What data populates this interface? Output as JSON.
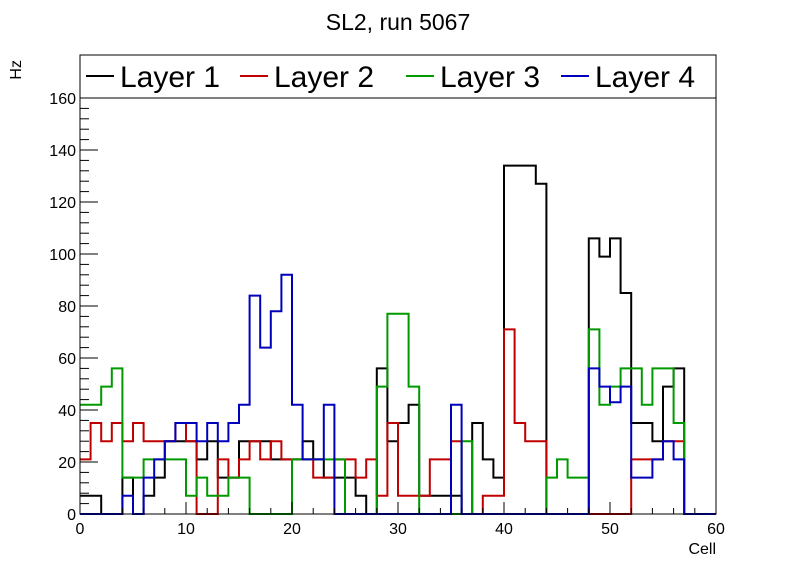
{
  "chart_data": {
    "type": "line",
    "title": "SL2, run 5067",
    "xlabel": "Cell",
    "ylabel": "Hz",
    "xlim": [
      0,
      60
    ],
    "ylim": [
      0,
      160
    ],
    "x_ticks": [
      0,
      10,
      20,
      30,
      40,
      50,
      60
    ],
    "y_ticks": [
      0,
      20,
      40,
      60,
      80,
      100,
      120,
      140,
      160
    ],
    "x_tick_labels": [
      "0",
      "10",
      "20",
      "30",
      "40",
      "50",
      "60"
    ],
    "y_tick_labels": [
      "0",
      "20",
      "40",
      "60",
      "80",
      "100",
      "120",
      "140",
      "160"
    ],
    "grid": false,
    "legend_position": "top",
    "bin_edges_start": 0,
    "bin_width": 1,
    "series": [
      {
        "name": "Layer 1",
        "color": "#000000",
        "values": [
          7,
          7,
          0,
          0,
          14,
          0,
          7,
          14,
          28,
          28,
          28,
          21,
          28,
          14,
          14,
          28,
          28,
          28,
          21,
          21,
          21,
          28,
          21,
          14,
          14,
          14,
          7,
          0,
          56,
          28,
          35,
          42,
          7,
          7,
          7,
          7,
          0,
          35,
          21,
          14,
          134,
          134,
          134,
          127,
          0,
          0,
          0,
          0,
          106,
          99,
          106,
          85,
          35,
          35,
          28,
          49,
          56,
          0,
          0,
          0
        ]
      },
      {
        "name": "Layer 2",
        "color": "#c00000",
        "values": [
          21,
          35,
          28,
          35,
          28,
          35,
          28,
          28,
          28,
          35,
          28,
          0,
          0,
          21,
          14,
          21,
          28,
          21,
          28,
          21,
          21,
          21,
          14,
          14,
          21,
          21,
          14,
          21,
          7,
          35,
          7,
          7,
          7,
          21,
          21,
          28,
          0,
          0,
          7,
          7,
          71,
          35,
          28,
          28,
          0,
          0,
          0,
          0,
          0,
          0,
          0,
          0,
          21,
          21,
          21,
          28,
          28,
          0,
          0,
          0
        ]
      },
      {
        "name": "Layer 3",
        "color": "#009900",
        "values": [
          42,
          42,
          49,
          56,
          14,
          14,
          21,
          21,
          21,
          21,
          7,
          14,
          7,
          7,
          14,
          14,
          0,
          0,
          0,
          0,
          21,
          21,
          21,
          21,
          21,
          0,
          0,
          0,
          49,
          77,
          77,
          49,
          0,
          0,
          0,
          0,
          28,
          0,
          0,
          0,
          0,
          0,
          0,
          0,
          14,
          21,
          14,
          14,
          71,
          42,
          49,
          56,
          56,
          42,
          56,
          56,
          35,
          0,
          0,
          0
        ]
      },
      {
        "name": "Layer 4",
        "color": "#0000bb",
        "values": [
          0,
          0,
          0,
          0,
          7,
          0,
          14,
          21,
          28,
          35,
          35,
          28,
          35,
          28,
          35,
          42,
          84,
          64,
          78,
          92,
          42,
          21,
          21,
          42,
          0,
          0,
          0,
          0,
          0,
          0,
          0,
          0,
          0,
          0,
          0,
          42,
          0,
          0,
          0,
          0,
          0,
          0,
          0,
          0,
          0,
          0,
          0,
          0,
          56,
          49,
          43,
          49,
          14,
          14,
          21,
          28,
          21,
          0,
          0,
          0
        ]
      }
    ]
  }
}
